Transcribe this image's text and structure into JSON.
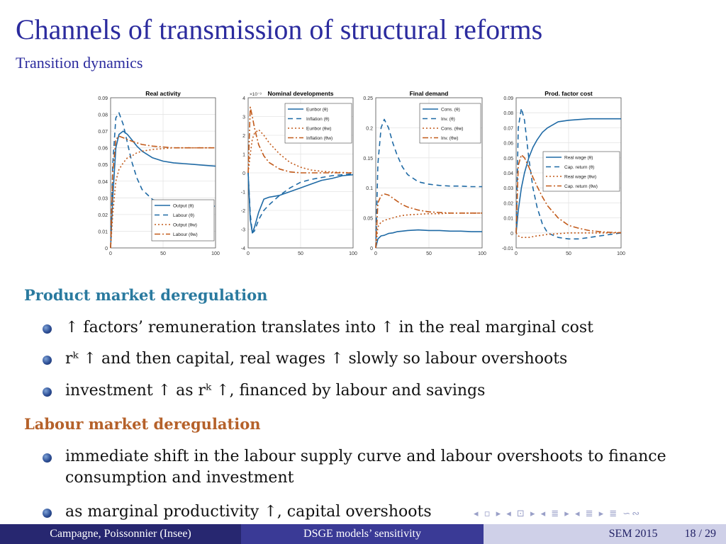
{
  "slide": {
    "title": "Channels of transmission of structural reforms",
    "subtitle": "Transition dynamics"
  },
  "chart_data": [
    {
      "type": "line",
      "title": "Real activity",
      "x": [
        0,
        2,
        5,
        8,
        12,
        16,
        20,
        25,
        30,
        40,
        50,
        60,
        70,
        80,
        90,
        100
      ],
      "xlim": [
        0,
        100
      ],
      "ylim": [
        0,
        0.09
      ],
      "yticks": [
        "0",
        "0.01",
        "0.02",
        "0.03",
        "0.04",
        "0.05",
        "0.06",
        "0.07",
        "0.08",
        "0.09"
      ],
      "xticks": [
        "0",
        "50",
        "100"
      ],
      "legend_position": "bottom-right",
      "series": [
        {
          "name": "Output (θ)",
          "color": "#1f6aa5",
          "dash": "",
          "values": [
            0,
            0.03,
            0.06,
            0.068,
            0.07,
            0.068,
            0.065,
            0.061,
            0.058,
            0.054,
            0.052,
            0.051,
            0.0505,
            0.05,
            0.0495,
            0.049
          ]
        },
        {
          "name": "Labour (θ)",
          "color": "#1f6aa5",
          "dash": "7,5",
          "values": [
            0,
            0.05,
            0.078,
            0.081,
            0.074,
            0.063,
            0.052,
            0.042,
            0.035,
            0.029,
            0.027,
            0.026,
            0.026,
            0.025,
            0.025,
            0.025
          ]
        },
        {
          "name": "Output (θw)",
          "color": "#c25a1a",
          "dash": "2,3",
          "values": [
            0,
            0.02,
            0.04,
            0.047,
            0.051,
            0.054,
            0.055,
            0.057,
            0.058,
            0.059,
            0.0595,
            0.06,
            0.06,
            0.06,
            0.06,
            0.06
          ]
        },
        {
          "name": "Labour (θw)",
          "color": "#c25a1a",
          "dash": "8,3,2,3",
          "values": [
            0,
            0.045,
            0.065,
            0.067,
            0.066,
            0.065,
            0.064,
            0.063,
            0.062,
            0.061,
            0.0605,
            0.06,
            0.06,
            0.06,
            0.06,
            0.06
          ]
        }
      ]
    },
    {
      "type": "line",
      "title": "Nominal developments",
      "scale_label": "×10⁻³",
      "x": [
        0,
        2,
        4,
        6,
        10,
        15,
        20,
        30,
        40,
        50,
        60,
        70,
        80,
        90,
        100
      ],
      "xlim": [
        0,
        100
      ],
      "ylim": [
        -4,
        4
      ],
      "yticks": [
        "-4",
        "-3",
        "-2",
        "-1",
        "0",
        "1",
        "2",
        "3",
        "4"
      ],
      "xticks": [
        "0",
        "50",
        "100"
      ],
      "legend_position": "top-right",
      "series": [
        {
          "name": "Euribor (θ)",
          "color": "#1f6aa5",
          "dash": "",
          "values": [
            0,
            -2.5,
            -3.2,
            -2.9,
            -2.1,
            -1.4,
            -1.3,
            -1.2,
            -1.0,
            -0.8,
            -0.6,
            -0.4,
            -0.3,
            -0.15,
            -0.1
          ]
        },
        {
          "name": "Inflation (θ)",
          "color": "#1f6aa5",
          "dash": "7,5",
          "values": [
            0,
            -2.2,
            -3.2,
            -3.1,
            -2.5,
            -2.0,
            -1.7,
            -1.2,
            -0.8,
            -0.5,
            -0.35,
            -0.25,
            -0.15,
            -0.1,
            -0.05
          ]
        },
        {
          "name": "Euribor (θw)",
          "color": "#c25a1a",
          "dash": "2,3",
          "values": [
            0,
            1.0,
            1.8,
            2.1,
            2.3,
            2.0,
            1.6,
            1.0,
            0.55,
            0.3,
            0.15,
            0.08,
            0.04,
            0.02,
            0
          ]
        },
        {
          "name": "Inflation (θw)",
          "color": "#c25a1a",
          "dash": "8,3,2,3",
          "values": [
            0,
            3.5,
            3.0,
            2.4,
            1.5,
            0.9,
            0.55,
            0.2,
            0.05,
            0,
            0,
            0,
            0,
            0,
            0
          ]
        }
      ]
    },
    {
      "type": "line",
      "title": "Final demand",
      "x": [
        0,
        2,
        5,
        8,
        12,
        16,
        20,
        25,
        30,
        40,
        50,
        60,
        70,
        80,
        90,
        100
      ],
      "xlim": [
        0,
        100
      ],
      "ylim": [
        0,
        0.25
      ],
      "yticks": [
        "0",
        "0.05",
        "0.1",
        "0.15",
        "0.2",
        "0.25"
      ],
      "xticks": [
        "0",
        "50",
        "100"
      ],
      "legend_position": "top-right",
      "series": [
        {
          "name": "Cons. (θ)",
          "color": "#1f6aa5",
          "dash": "",
          "values": [
            0,
            0.015,
            0.02,
            0.021,
            0.024,
            0.025,
            0.027,
            0.028,
            0.029,
            0.03,
            0.029,
            0.029,
            0.028,
            0.028,
            0.027,
            0.027
          ]
        },
        {
          "name": "Inv. (θ)",
          "color": "#1f6aa5",
          "dash": "7,5",
          "values": [
            0,
            0.14,
            0.2,
            0.214,
            0.2,
            0.175,
            0.155,
            0.135,
            0.122,
            0.11,
            0.106,
            0.104,
            0.103,
            0.103,
            0.102,
            0.102
          ]
        },
        {
          "name": "Cons. (θw)",
          "color": "#c25a1a",
          "dash": "2,3",
          "values": [
            0,
            0.035,
            0.043,
            0.046,
            0.048,
            0.05,
            0.052,
            0.054,
            0.055,
            0.056,
            0.057,
            0.057,
            0.058,
            0.058,
            0.058,
            0.058
          ]
        },
        {
          "name": "Inv. (θw)",
          "color": "#c25a1a",
          "dash": "8,3,2,3",
          "values": [
            0,
            0.075,
            0.087,
            0.09,
            0.088,
            0.083,
            0.078,
            0.072,
            0.068,
            0.063,
            0.06,
            0.059,
            0.058,
            0.058,
            0.058,
            0.058
          ]
        }
      ]
    },
    {
      "type": "line",
      "title": "Prod. factor cost",
      "x": [
        0,
        2,
        5,
        8,
        12,
        16,
        20,
        25,
        30,
        40,
        50,
        60,
        70,
        80,
        90,
        100
      ],
      "xlim": [
        0,
        100
      ],
      "ylim": [
        -0.01,
        0.09
      ],
      "yticks": [
        "-0.01",
        "0",
        "0.01",
        "0.02",
        "0.03",
        "0.04",
        "0.05",
        "0.06",
        "0.07",
        "0.08",
        "0.09"
      ],
      "xticks": [
        "0",
        "50",
        "100"
      ],
      "legend_position": "center-right",
      "series": [
        {
          "name": "Real wage (θ)",
          "color": "#1f6aa5",
          "dash": "",
          "values": [
            0,
            0.015,
            0.03,
            0.04,
            0.05,
            0.057,
            0.062,
            0.067,
            0.07,
            0.074,
            0.075,
            0.0755,
            0.076,
            0.076,
            0.076,
            0.076
          ]
        },
        {
          "name": "Cap. return (θ)",
          "color": "#1f6aa5",
          "dash": "7,5",
          "values": [
            0,
            0.07,
            0.083,
            0.075,
            0.05,
            0.03,
            0.017,
            0.006,
            0,
            -0.003,
            -0.004,
            -0.004,
            -0.003,
            -0.002,
            -0.001,
            0
          ]
        },
        {
          "name": "Real wage (θw)",
          "color": "#c25a1a",
          "dash": "2,3",
          "values": [
            0,
            -0.002,
            -0.003,
            -0.003,
            -0.003,
            -0.0025,
            -0.002,
            -0.0015,
            -0.001,
            -0.0005,
            0,
            0,
            0,
            0,
            0,
            0
          ]
        },
        {
          "name": "Cap. return (θw)",
          "color": "#c25a1a",
          "dash": "8,3,2,3",
          "values": [
            0,
            0.045,
            0.052,
            0.05,
            0.044,
            0.037,
            0.031,
            0.024,
            0.018,
            0.01,
            0.005,
            0.003,
            0.0015,
            0.0008,
            0.0004,
            0.0002
          ]
        }
      ]
    }
  ],
  "sections": {
    "product": {
      "heading": "Product market deregulation",
      "bullets": [
        "↑ factors’ remuneration translates into ↑ in the real marginal cost",
        "rᵏ ↑ and then capital, real wages ↑ slowly so labour overshoots",
        "investment ↑ as rᵏ ↑, financed by labour and savings"
      ]
    },
    "labour": {
      "heading": "Labour market deregulation",
      "bullets": [
        "immediate shift in the labour supply curve and labour overshoots to finance consumption and investment",
        "as marginal productivity ↑, capital overshoots"
      ]
    }
  },
  "footer": {
    "authors": "Campagne, Poissonnier  (Insee)",
    "talk": "DSGE models’ sensitivity",
    "event": "SEM 2015",
    "page": "18 / 29"
  },
  "nav_symbols": "◂ ▫ ▸ ◂ ⊡ ▸ ◂ ≣ ▸ ◂ ≣ ▸ ≣ ∽∾"
}
